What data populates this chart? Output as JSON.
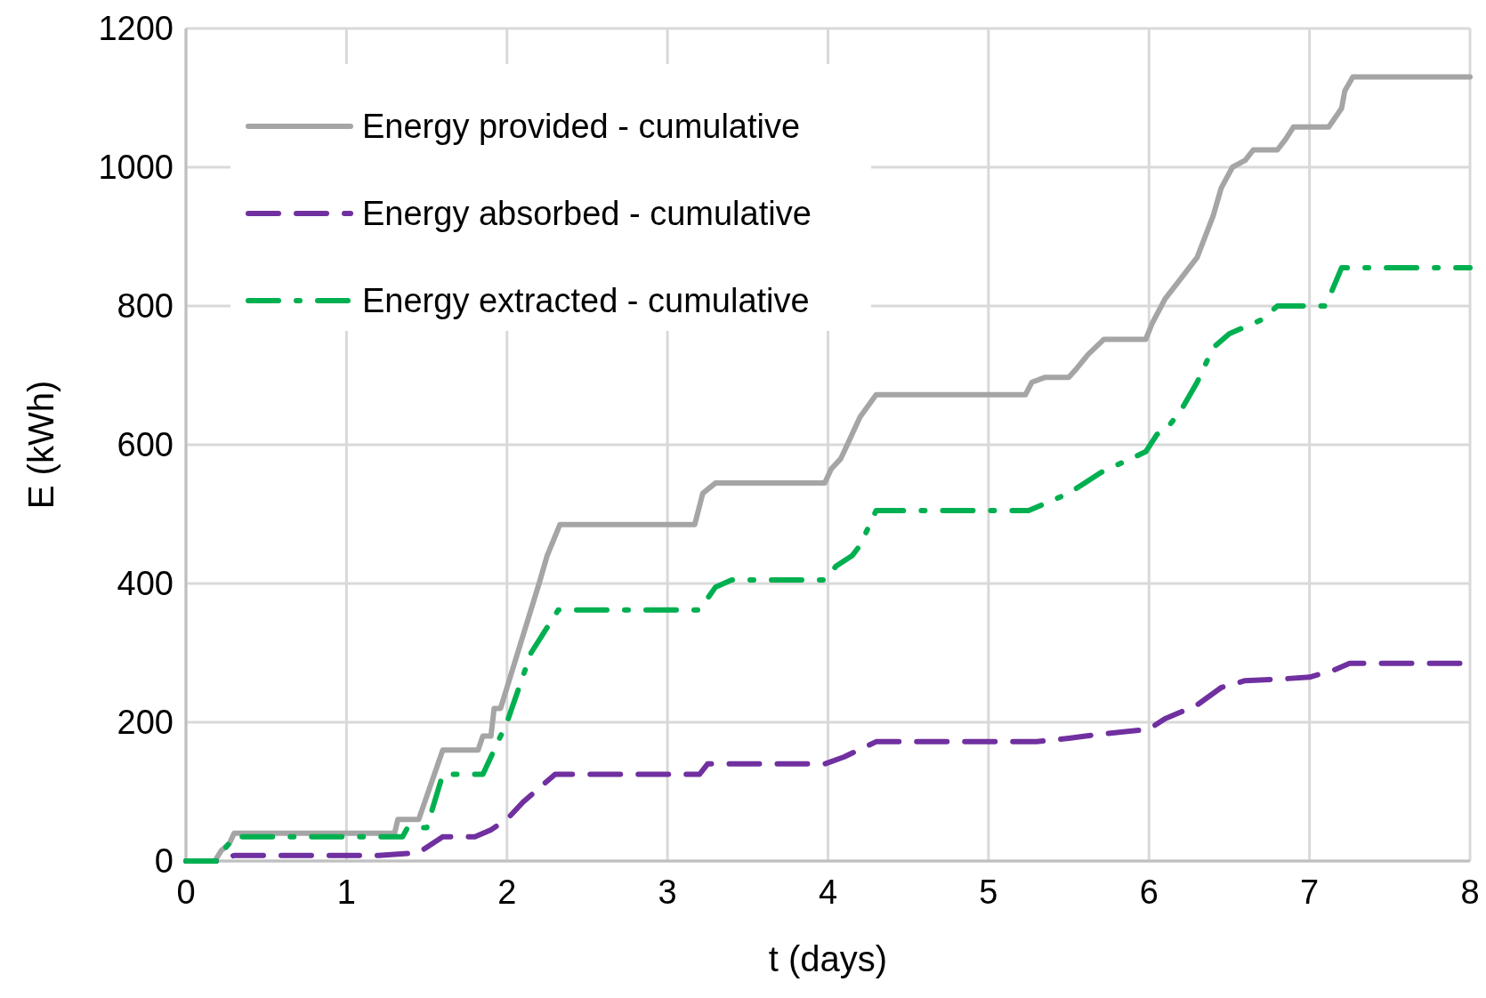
{
  "chart_data": {
    "type": "line",
    "xlabel": "t (days)",
    "ylabel": "E (kWh)",
    "xlim": [
      0,
      8
    ],
    "xticks": [
      0,
      1,
      2,
      3,
      4,
      5,
      6,
      7,
      8
    ],
    "ylim": [
      0,
      1200
    ],
    "yticks": [
      0,
      200,
      400,
      600,
      800,
      1000,
      1200
    ],
    "grid": true,
    "legend": "top left",
    "series": [
      {
        "name": "Energy provided - cumulative",
        "color": "#a5a5a5",
        "line_style": "solid",
        "x": [
          0,
          0.18,
          0.22,
          0.27,
          0.3,
          1.3,
          1.32,
          1.45,
          1.6,
          1.82,
          1.85,
          1.9,
          1.92,
          1.96,
          2.2,
          2.25,
          2.33,
          3.17,
          3.22,
          3.3,
          3.98,
          4.02,
          4.08,
          4.12,
          4.2,
          4.3,
          5.23,
          5.27,
          5.35,
          5.5,
          5.55,
          5.62,
          5.72,
          5.98,
          6.02,
          6.1,
          6.2,
          6.3,
          6.4,
          6.45,
          6.52,
          6.6,
          6.65,
          6.8,
          6.85,
          6.9,
          7.12,
          7.2,
          7.22,
          7.27,
          8
        ],
        "values": [
          0,
          0,
          15,
          25,
          40,
          40,
          60,
          60,
          160,
          160,
          180,
          180,
          220,
          220,
          400,
          440,
          485,
          485,
          530,
          545,
          545,
          565,
          580,
          600,
          640,
          672,
          672,
          690,
          697,
          697,
          710,
          730,
          752,
          752,
          775,
          810,
          840,
          870,
          930,
          970,
          1000,
          1010,
          1025,
          1025,
          1040,
          1058,
          1058,
          1085,
          1110,
          1130,
          1130
        ]
      },
      {
        "name": "Energy absorbed - cumulative",
        "color": "#7030a0",
        "line_style": "dashed",
        "x": [
          0,
          0.2,
          0.3,
          1.2,
          1.45,
          1.6,
          1.8,
          1.9,
          2.0,
          2.1,
          2.3,
          3.2,
          3.25,
          3.98,
          4.1,
          4.3,
          5.3,
          5.5,
          5.7,
          6.0,
          6.1,
          6.3,
          6.45,
          6.6,
          6.8,
          7.0,
          7.15,
          7.25,
          8
        ],
        "values": [
          0,
          0,
          8,
          8,
          12,
          35,
          35,
          45,
          60,
          85,
          125,
          125,
          140,
          140,
          150,
          172,
          172,
          177,
          183,
          190,
          205,
          225,
          250,
          260,
          262,
          265,
          275,
          285,
          285
        ]
      },
      {
        "name": "Energy extracted - cumulative",
        "color": "#00b050",
        "line_style": "dashdot",
        "x": [
          0,
          0.2,
          0.25,
          0.3,
          1.35,
          1.38,
          1.5,
          1.6,
          1.85,
          1.9,
          2.0,
          2.15,
          2.32,
          3.2,
          3.3,
          3.4,
          3.98,
          4.05,
          4.15,
          4.2,
          4.3,
          5.25,
          5.5,
          5.6,
          5.7,
          5.98,
          6.05,
          6.1,
          6.2,
          6.3,
          6.4,
          6.5,
          6.7,
          6.8,
          7.1,
          7.2,
          8
        ],
        "values": [
          0,
          0,
          20,
          35,
          35,
          48,
          48,
          125,
          125,
          150,
          200,
          300,
          362,
          362,
          395,
          405,
          405,
          425,
          440,
          455,
          505,
          505,
          530,
          545,
          560,
          590,
          615,
          620,
          650,
          690,
          740,
          760,
          780,
          800,
          800,
          855,
          855
        ]
      }
    ]
  }
}
